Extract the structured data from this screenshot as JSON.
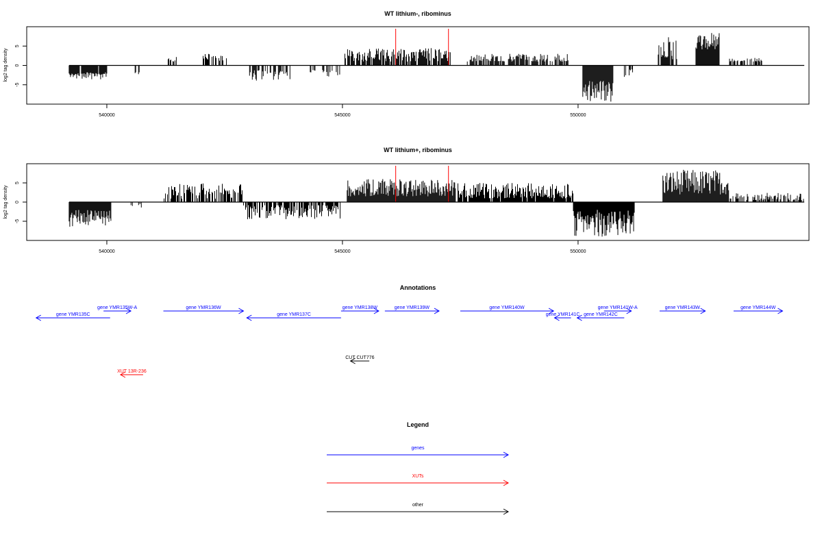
{
  "chart_data": [
    {
      "type": "bar",
      "title": "WT lithium-, ribominus",
      "ylabel": "log2 tag density",
      "xlim": [
        538300,
        554900
      ],
      "ylim": [
        -10,
        10
      ],
      "xticks": [
        540000,
        545000,
        550000
      ],
      "yticks": [
        5,
        0,
        -5
      ],
      "ytick_labels": [
        "5",
        "0",
        "-5"
      ],
      "markers_x": [
        546130,
        547250
      ],
      "marker_color": "#ff0000",
      "segments": [
        {
          "x0": 539200,
          "x1": 540000,
          "sign": -1,
          "min": 1.8,
          "max": 3.6,
          "density": 0.9
        },
        {
          "x0": 540600,
          "x1": 540700,
          "sign": -1,
          "min": 1.5,
          "max": 2.5,
          "density": 0.5
        },
        {
          "x0": 541300,
          "x1": 541500,
          "sign": 1,
          "min": 1.0,
          "max": 2.8,
          "density": 0.5
        },
        {
          "x0": 542000,
          "x1": 542600,
          "sign": 1,
          "min": 1.2,
          "max": 3.0,
          "density": 0.4
        },
        {
          "x0": 543000,
          "x1": 543900,
          "sign": -1,
          "min": 1.2,
          "max": 4.0,
          "density": 0.5
        },
        {
          "x0": 544200,
          "x1": 544950,
          "sign": -1,
          "min": 1.0,
          "max": 3.0,
          "density": 0.4
        },
        {
          "x0": 545050,
          "x1": 547300,
          "sign": 1,
          "min": 1.0,
          "max": 4.5,
          "density": 0.8
        },
        {
          "x0": 547650,
          "x1": 549800,
          "sign": 1,
          "min": 1.0,
          "max": 3.0,
          "density": 0.75
        },
        {
          "x0": 550100,
          "x1": 550750,
          "sign": -1,
          "min": 4.0,
          "max": 9.5,
          "density": 1.0
        },
        {
          "x0": 550850,
          "x1": 551200,
          "sign": -1,
          "min": 1.0,
          "max": 3.0,
          "density": 0.3
        },
        {
          "x0": 551700,
          "x1": 552100,
          "sign": 1,
          "min": 1.5,
          "max": 7.5,
          "density": 0.6
        },
        {
          "x0": 552500,
          "x1": 553000,
          "sign": 1,
          "min": 4.0,
          "max": 8.5,
          "density": 1.0
        },
        {
          "x0": 553200,
          "x1": 553900,
          "sign": 1,
          "min": 1.0,
          "max": 2.0,
          "density": 0.4
        }
      ]
    },
    {
      "type": "bar",
      "title": "WT lithium+, ribominus",
      "ylabel": "log2 tag density",
      "xlim": [
        538300,
        554900
      ],
      "ylim": [
        -10,
        10
      ],
      "xticks": [
        540000,
        545000,
        550000
      ],
      "yticks": [
        5,
        0,
        -5
      ],
      "ytick_labels": [
        "5",
        "0",
        "-5"
      ],
      "markers_x": [
        546130,
        547250
      ],
      "marker_color": "#ff0000",
      "segments": [
        {
          "x0": 539200,
          "x1": 540100,
          "sign": -1,
          "min": 2.0,
          "max": 6.5,
          "density": 1.0
        },
        {
          "x0": 540500,
          "x1": 540750,
          "sign": -1,
          "min": 0.5,
          "max": 1.5,
          "density": 0.3
        },
        {
          "x0": 541200,
          "x1": 542900,
          "sign": 1,
          "min": 0.8,
          "max": 5.0,
          "density": 0.6
        },
        {
          "x0": 542900,
          "x1": 544950,
          "sign": -1,
          "min": 0.8,
          "max": 4.5,
          "density": 0.75
        },
        {
          "x0": 545100,
          "x1": 547400,
          "sign": 1,
          "min": 1.5,
          "max": 6.0,
          "density": 1.0
        },
        {
          "x0": 547450,
          "x1": 549900,
          "sign": 1,
          "min": 1.0,
          "max": 5.0,
          "density": 0.9
        },
        {
          "x0": 549900,
          "x1": 551200,
          "sign": -1,
          "min": 2.0,
          "max": 9.0,
          "density": 1.0
        },
        {
          "x0": 551800,
          "x1": 553200,
          "sign": 1,
          "min": 2.0,
          "max": 8.5,
          "density": 1.0
        },
        {
          "x0": 553200,
          "x1": 554800,
          "sign": 1,
          "min": 0.5,
          "max": 2.5,
          "density": 0.5
        }
      ]
    }
  ],
  "annotations": {
    "title": "Annotations",
    "genes": [
      {
        "label": "gene YMR135C",
        "x0": 540070,
        "x1": 538500,
        "row": 1
      },
      {
        "label": "gene YMR135W-A",
        "x0": 539930,
        "x1": 540510,
        "row": 0
      },
      {
        "label": "gene YMR136W",
        "x0": 541200,
        "x1": 542900,
        "row": 0
      },
      {
        "label": "gene YMR137C",
        "x0": 544970,
        "x1": 542970,
        "row": 1
      },
      {
        "label": "gene YMR138W",
        "x0": 544970,
        "x1": 545770,
        "row": 0
      },
      {
        "label": "gene YMR139W",
        "x0": 545900,
        "x1": 547050,
        "row": 0
      },
      {
        "label": "gene YMR140W",
        "x0": 547500,
        "x1": 549480,
        "row": 0
      },
      {
        "label": "gene YMR141C",
        "x0": 549850,
        "x1": 549500,
        "row": 1
      },
      {
        "label": "gene YMR142C",
        "x0": 550980,
        "x1": 549980,
        "row": 1
      },
      {
        "label": "gene YMR141W-A",
        "x0": 550550,
        "x1": 551130,
        "row": 0
      },
      {
        "label": "gene YMR143W",
        "x0": 551730,
        "x1": 552700,
        "row": 0
      },
      {
        "label": "gene YMR144W",
        "x0": 553300,
        "x1": 554340,
        "row": 0
      }
    ],
    "other": [
      {
        "label": "CUT CUT776",
        "x0": 545570,
        "x1": 545170
      }
    ],
    "xuts": [
      {
        "label": "XUT 13R-236",
        "x0": 540770,
        "x1": 540290
      }
    ]
  },
  "legend": {
    "title": "Legend",
    "items": [
      {
        "label": "genes",
        "color": "#0000ff"
      },
      {
        "label": "XUTs",
        "color": "#ff0000"
      },
      {
        "label": "other",
        "color": "#000000"
      }
    ]
  },
  "colors": {
    "gene": "#0000ff",
    "xut": "#ff0000",
    "other": "#000000",
    "marker": "#ff0000"
  }
}
